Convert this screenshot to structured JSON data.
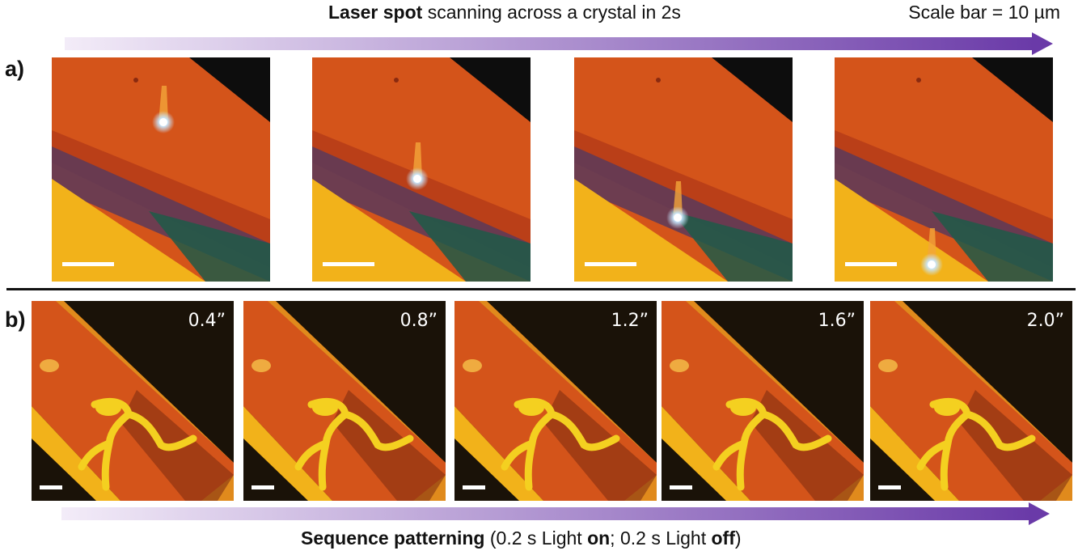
{
  "header": {
    "title_bold": "Laser spot",
    "title_rest": " scanning across a crystal in 2s",
    "scale_note": "Scale bar = 10 µm"
  },
  "panels": {
    "a_label": "a)",
    "b_label": "b)"
  },
  "row_b_timestamps": [
    "0.4”",
    "0.8”",
    "1.2”",
    "1.6”",
    "2.0”"
  ],
  "footer": {
    "bold1": "Sequence patterning",
    "text1": " (0.2 s Light ",
    "bold2": "on",
    "text2": "; 0.2 s Light ",
    "bold3": "off",
    "text3": ")"
  },
  "colors": {
    "arrow_start": "#f3ecf8",
    "arrow_end": "#6a3aa8",
    "crystal_orange": "#d4541a",
    "crystal_yellow": "#f2b21a",
    "band_purple": "#5a3a5a",
    "band_teal": "#1e5a48",
    "background_dark": "#1a1208",
    "pattern_yellow": "#f4d020"
  }
}
